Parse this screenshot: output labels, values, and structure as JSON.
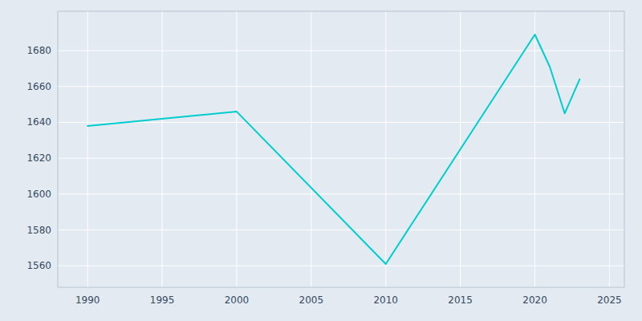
{
  "chart_data": {
    "type": "line",
    "x": [
      1990,
      2000,
      2010,
      2020,
      2021,
      2022,
      2023
    ],
    "values": [
      1638,
      1646,
      1561,
      1689,
      1671,
      1645,
      1664
    ],
    "color": "#00CDCD",
    "xlim": [
      1988,
      2026
    ],
    "ylim": [
      1548,
      1702
    ],
    "xticks": [
      1990,
      1995,
      2000,
      2005,
      2010,
      2015,
      2020,
      2025
    ],
    "yticks": [
      1560,
      1580,
      1600,
      1620,
      1640,
      1660,
      1680
    ],
    "grid": true
  }
}
